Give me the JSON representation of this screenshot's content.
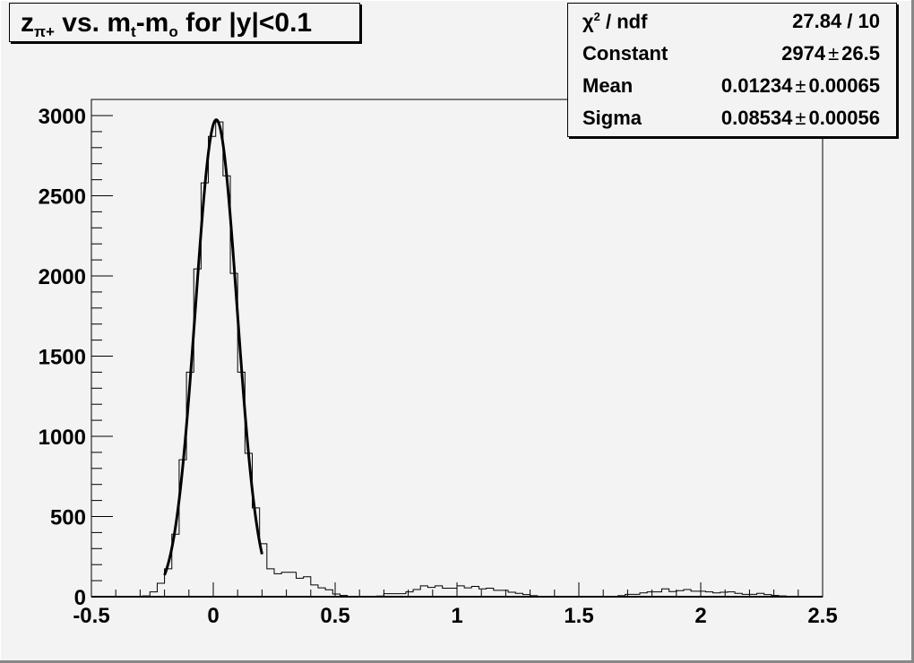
{
  "chart_data": {
    "type": "bar",
    "title_parts": {
      "z": "z",
      "z_sub": "π+",
      "mid": " vs. m",
      "t_sub": "t",
      "dash": "-m",
      "o_sub": "o",
      "rest": " for |y|<0.1"
    },
    "xlim": [
      -0.5,
      2.5
    ],
    "ylim": [
      0,
      3100
    ],
    "x_ticks": [
      "-0.5",
      "0",
      "0.5",
      "1",
      "1.5",
      "2",
      "2.5"
    ],
    "y_ticks": [
      "0",
      "500",
      "1000",
      "1500",
      "2000",
      "2500",
      "3000"
    ],
    "bin_low_edge": -0.5,
    "bin_width": 0.03,
    "values": [
      0,
      0,
      0,
      0,
      0,
      0,
      0,
      5,
      30,
      84,
      174,
      390,
      854,
      1400,
      2044,
      2580,
      2870,
      2960,
      2624,
      2016,
      1400,
      894,
      554,
      330,
      174,
      143,
      152,
      152,
      115,
      124,
      73,
      55,
      43,
      17,
      8,
      0,
      0,
      0,
      0,
      4,
      19,
      19,
      19,
      30,
      45,
      68,
      58,
      68,
      53,
      53,
      68,
      55,
      64,
      49,
      53,
      40,
      40,
      28,
      21,
      13,
      6,
      0,
      0,
      0,
      0,
      0,
      0,
      0,
      0,
      0,
      0,
      0,
      6,
      15,
      15,
      24,
      30,
      30,
      49,
      32,
      38,
      45,
      34,
      34,
      30,
      24,
      28,
      30,
      21,
      15,
      15,
      21,
      13,
      8,
      5,
      0,
      0,
      0,
      0,
      0
    ],
    "fit": {
      "function": "gaus",
      "constant": 2974,
      "mean": 0.01234,
      "sigma": 0.08534,
      "range": [
        -0.2,
        0.2
      ]
    },
    "grid": false,
    "legend": "none",
    "stats": [
      {
        "label": "χ",
        "label_sup": "2",
        "label_rest": " / ndf",
        "value": "27.84 / 10"
      },
      {
        "label": "Constant",
        "value": "2974",
        "error": "26.5"
      },
      {
        "label": "Mean",
        "value": "0.01234",
        "error": "0.00065"
      },
      {
        "label": "Sigma",
        "value": "0.08534",
        "error": "0.00056"
      }
    ],
    "pm_symbol": "±",
    "stats_placement": "top-right"
  }
}
